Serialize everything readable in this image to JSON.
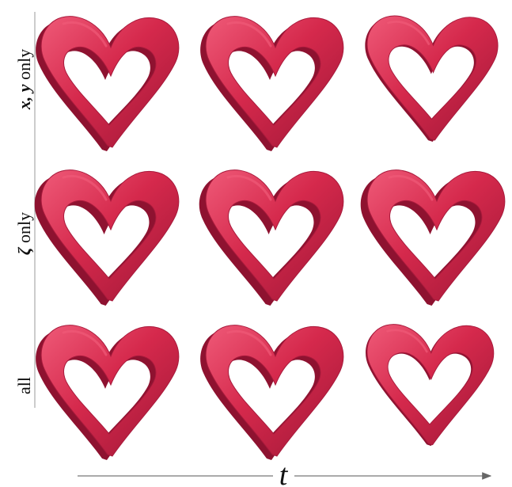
{
  "figure": {
    "rows": [
      {
        "label_math": "x, y",
        "label_text": " only",
        "label_full": "x, y only"
      },
      {
        "label_math": "ζ",
        "label_text": " only",
        "label_full": "ζ only"
      },
      {
        "label_math": "",
        "label_text": "all",
        "label_full": "all"
      }
    ],
    "columns": 3,
    "axis_label": "t",
    "colors": {
      "heart_fill": "#d5294c",
      "heart_shadow": "#8e1230",
      "heart_highlight": "#ef5a78",
      "axis": "#777777"
    }
  }
}
